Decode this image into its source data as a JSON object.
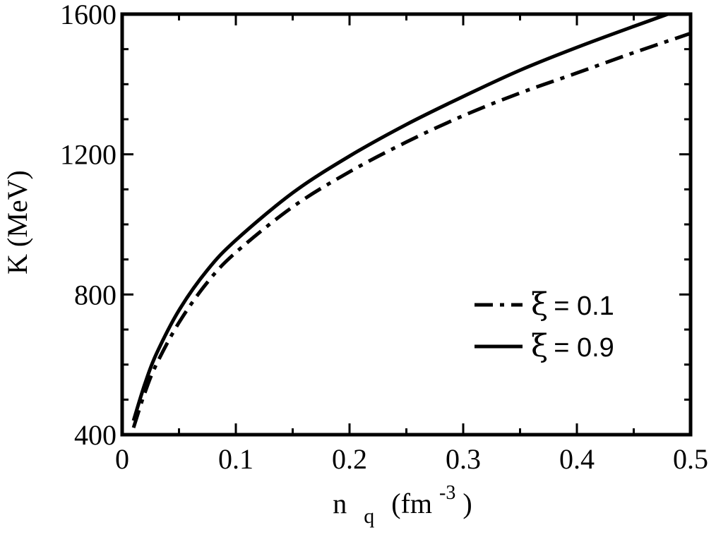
{
  "chart_data": {
    "type": "line",
    "xlabel": {
      "base": "n",
      "sub": "q",
      "unit_open": "(fm",
      "unit_sup": "-3",
      "unit_close": ")"
    },
    "ylabel": "K (MeV)",
    "xlim": [
      0,
      0.5
    ],
    "ylim": [
      400,
      1600
    ],
    "x_ticks": [
      {
        "value": 0,
        "label": "0"
      },
      {
        "value": 0.1,
        "label": "0.1"
      },
      {
        "value": 0.2,
        "label": "0.2"
      },
      {
        "value": 0.3,
        "label": "0.3"
      },
      {
        "value": 0.4,
        "label": "0.4"
      },
      {
        "value": 0.5,
        "label": "0.5"
      }
    ],
    "y_ticks": [
      {
        "value": 400,
        "label": "400"
      },
      {
        "value": 800,
        "label": "800"
      },
      {
        "value": 1200,
        "label": "1200"
      },
      {
        "value": 1600,
        "label": "1600"
      }
    ],
    "x_minor_step": 0.05,
    "y_minor_step": 100,
    "legend_position": "lower-right",
    "series": [
      {
        "name": "0.1",
        "symbol": "ξ",
        "style": "dash-dot",
        "color": "#000000",
        "x": [
          0.01,
          0.02,
          0.03,
          0.05,
          0.075,
          0.1,
          0.15,
          0.2,
          0.25,
          0.3,
          0.35,
          0.4,
          0.45,
          0.5
        ],
        "y": [
          420,
          520,
          600,
          720,
          835,
          920,
          1050,
          1150,
          1235,
          1310,
          1375,
          1432,
          1490,
          1545
        ]
      },
      {
        "name": "0.9",
        "symbol": "ξ",
        "style": "solid",
        "color": "#000000",
        "x": [
          0.01,
          0.02,
          0.03,
          0.05,
          0.075,
          0.1,
          0.15,
          0.2,
          0.25,
          0.3,
          0.35,
          0.4,
          0.45,
          0.48
        ],
        "y": [
          440,
          545,
          630,
          755,
          870,
          955,
          1090,
          1195,
          1285,
          1365,
          1440,
          1505,
          1565,
          1600
        ]
      }
    ]
  }
}
